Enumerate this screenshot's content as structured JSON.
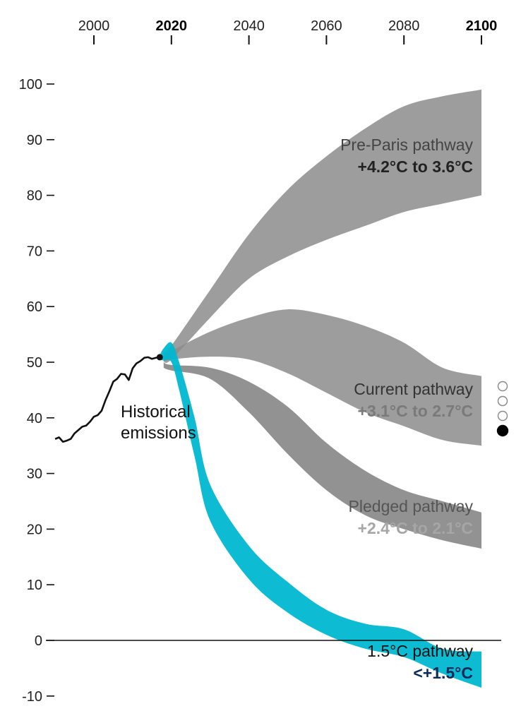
{
  "chart_data": {
    "type": "area",
    "x_axis": {
      "position": "top",
      "ticks": [
        {
          "value": 2000,
          "label": "2000",
          "bold": false
        },
        {
          "value": 2020,
          "label": "2020",
          "bold": true
        },
        {
          "value": 2040,
          "label": "2040",
          "bold": false
        },
        {
          "value": 2060,
          "label": "2060",
          "bold": false
        },
        {
          "value": 2080,
          "label": "2080",
          "bold": false
        },
        {
          "value": 2100,
          "label": "2100",
          "bold": true
        }
      ],
      "range": [
        1990,
        2105
      ]
    },
    "y_axis": {
      "ticks": [
        {
          "value": 100,
          "label": "100"
        },
        {
          "value": 90,
          "label": "90"
        },
        {
          "value": 80,
          "label": "80"
        },
        {
          "value": 70,
          "label": "70"
        },
        {
          "value": 60,
          "label": "60"
        },
        {
          "value": 50,
          "label": "50"
        },
        {
          "value": 40,
          "label": "40"
        },
        {
          "value": 30,
          "label": "30"
        },
        {
          "value": 20,
          "label": "20"
        },
        {
          "value": 10,
          "label": "10"
        },
        {
          "value": 0,
          "label": "0"
        },
        {
          "value": -10,
          "label": "-10"
        }
      ],
      "range": [
        -10,
        100
      ]
    },
    "historical": {
      "label_lines": [
        "Historical",
        "emissions"
      ],
      "color": "#111111",
      "points": [
        [
          1990,
          36.2
        ],
        [
          1991,
          36.5
        ],
        [
          1992,
          35.7
        ],
        [
          1993,
          35.9
        ],
        [
          1994,
          36.2
        ],
        [
          1995,
          37.2
        ],
        [
          1996,
          37.8
        ],
        [
          1997,
          38.4
        ],
        [
          1998,
          38.6
        ],
        [
          1999,
          39.3
        ],
        [
          2000,
          40.2
        ],
        [
          2001,
          40.5
        ],
        [
          2002,
          41.3
        ],
        [
          2003,
          43.2
        ],
        [
          2004,
          44.8
        ],
        [
          2005,
          46.5
        ],
        [
          2006,
          47.0
        ],
        [
          2007,
          47.9
        ],
        [
          2008,
          47.8
        ],
        [
          2009,
          46.8
        ],
        [
          2010,
          48.9
        ],
        [
          2011,
          49.8
        ],
        [
          2012,
          50.2
        ],
        [
          2013,
          50.8
        ],
        [
          2014,
          50.9
        ],
        [
          2015,
          50.6
        ],
        [
          2016,
          50.8
        ],
        [
          2017,
          50.9
        ]
      ]
    },
    "series": [
      {
        "name": "Pre-Paris pathway",
        "temp": "+4.2°C to 3.6°C",
        "color": "#8c8c8c",
        "name_color": "#444444",
        "temp_color": "#222222",
        "x": [
          2018,
          2020,
          2030,
          2040,
          2050,
          2060,
          2070,
          2080,
          2090,
          2100
        ],
        "upper": [
          51.8,
          53.0,
          63.0,
          73.0,
          81.0,
          87.0,
          92.0,
          96.0,
          97.8,
          99.0
        ],
        "lower": [
          50.3,
          50.5,
          58.0,
          65.0,
          69.0,
          72.0,
          74.5,
          77.0,
          78.5,
          80.0
        ]
      },
      {
        "name": "Current pathway",
        "temp": "+3.1°C to 2.7°C",
        "color": "#8c8c8c",
        "name_color": "#333333",
        "temp_color": "#7a7a7a",
        "x": [
          2018,
          2020,
          2030,
          2040,
          2050,
          2060,
          2070,
          2080,
          2090,
          2100
        ],
        "upper": [
          51.0,
          52.0,
          55.5,
          58.0,
          59.5,
          58.5,
          56.5,
          53.5,
          49.0,
          47.5
        ],
        "lower": [
          50.0,
          50.5,
          51.0,
          50.5,
          48.0,
          44.5,
          41.0,
          38.5,
          36.0,
          35.0
        ]
      },
      {
        "name": "Pledged pathway",
        "temp": "+2.4°C to 2.1°C",
        "color": "#7f7f7f",
        "name_color": "#555555",
        "temp_color": "#a6a6a6",
        "x": [
          2018,
          2020,
          2030,
          2040,
          2050,
          2060,
          2070,
          2080,
          2090,
          2100
        ],
        "upper": [
          50.0,
          49.5,
          49.0,
          46.5,
          42.0,
          35.5,
          30.5,
          27.0,
          25.0,
          23.0
        ],
        "lower": [
          49.0,
          48.5,
          47.0,
          41.0,
          33.5,
          27.0,
          22.5,
          20.0,
          18.0,
          16.5
        ]
      },
      {
        "name": "1.5°C pathway",
        "temp": "<+1.5°C",
        "color": "#00b7d1",
        "name_color": "#111111",
        "temp_color": "#0b2b5a",
        "x": [
          2017,
          2018,
          2020,
          2022,
          2026,
          2030,
          2040,
          2050,
          2060,
          2070,
          2080,
          2090,
          2100
        ],
        "upper": [
          51.2,
          52.5,
          53.5,
          50.0,
          40.0,
          28.0,
          17.0,
          10.5,
          5.5,
          3.0,
          2.0,
          -1.5,
          -2.0
        ],
        "lower": [
          50.5,
          50.3,
          50.0,
          45.0,
          33.0,
          21.5,
          11.0,
          5.0,
          1.0,
          -1.5,
          -3.0,
          -6.0,
          -8.5
        ]
      }
    ],
    "step_indicator": {
      "count": 4,
      "active_index": 3
    }
  }
}
